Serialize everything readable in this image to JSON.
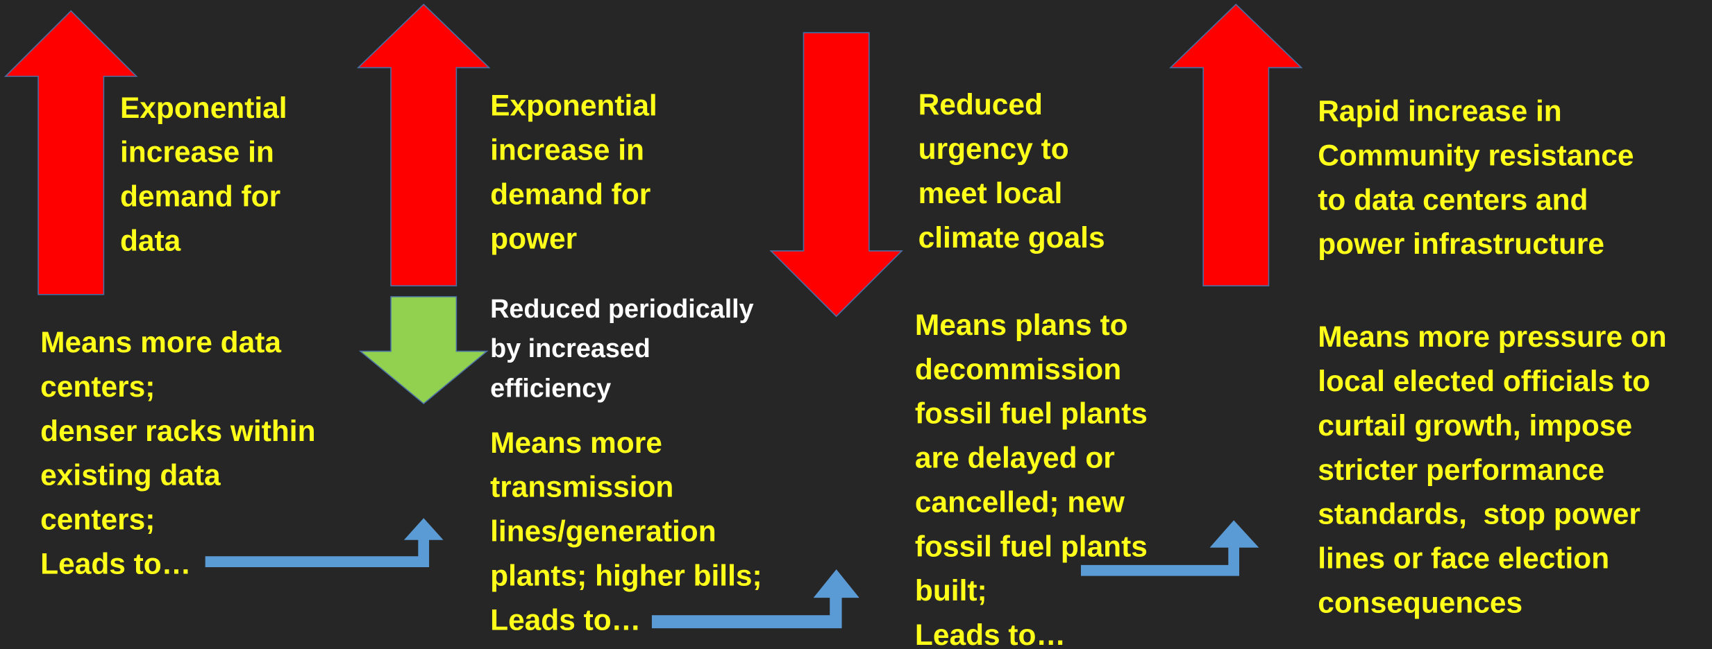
{
  "columns": [
    {
      "heading": [
        "Exponential",
        "increase in",
        "demand for",
        "data"
      ],
      "body": [
        "Means more data",
        "centers;",
        "denser racks within",
        "existing data",
        "centers;",
        "Leads to…"
      ]
    },
    {
      "heading": [
        "Exponential",
        "increase in",
        "demand for",
        "power"
      ],
      "note": [
        "Reduced periodically",
        "by increased",
        "efficiency"
      ],
      "body": [
        "Means more",
        "transmission",
        "lines/generation",
        "plants; higher bills;",
        "Leads to…"
      ]
    },
    {
      "heading": [
        "Reduced",
        "urgency to",
        "meet local",
        "climate goals"
      ],
      "body": [
        "Means plans to",
        "decommission",
        "fossil fuel plants",
        "are delayed or",
        "cancelled; new",
        "fossil fuel plants",
        "built;",
        "Leads to…"
      ]
    },
    {
      "heading": [
        "Rapid increase in",
        "Community resistance",
        "to data centers and",
        "power infrastructure"
      ],
      "body": [
        "Means more pressure on",
        "local elected officials to",
        "curtail growth, impose",
        "stricter performance",
        "standards,  stop power",
        "lines or face election",
        "consequences"
      ]
    }
  ]
}
